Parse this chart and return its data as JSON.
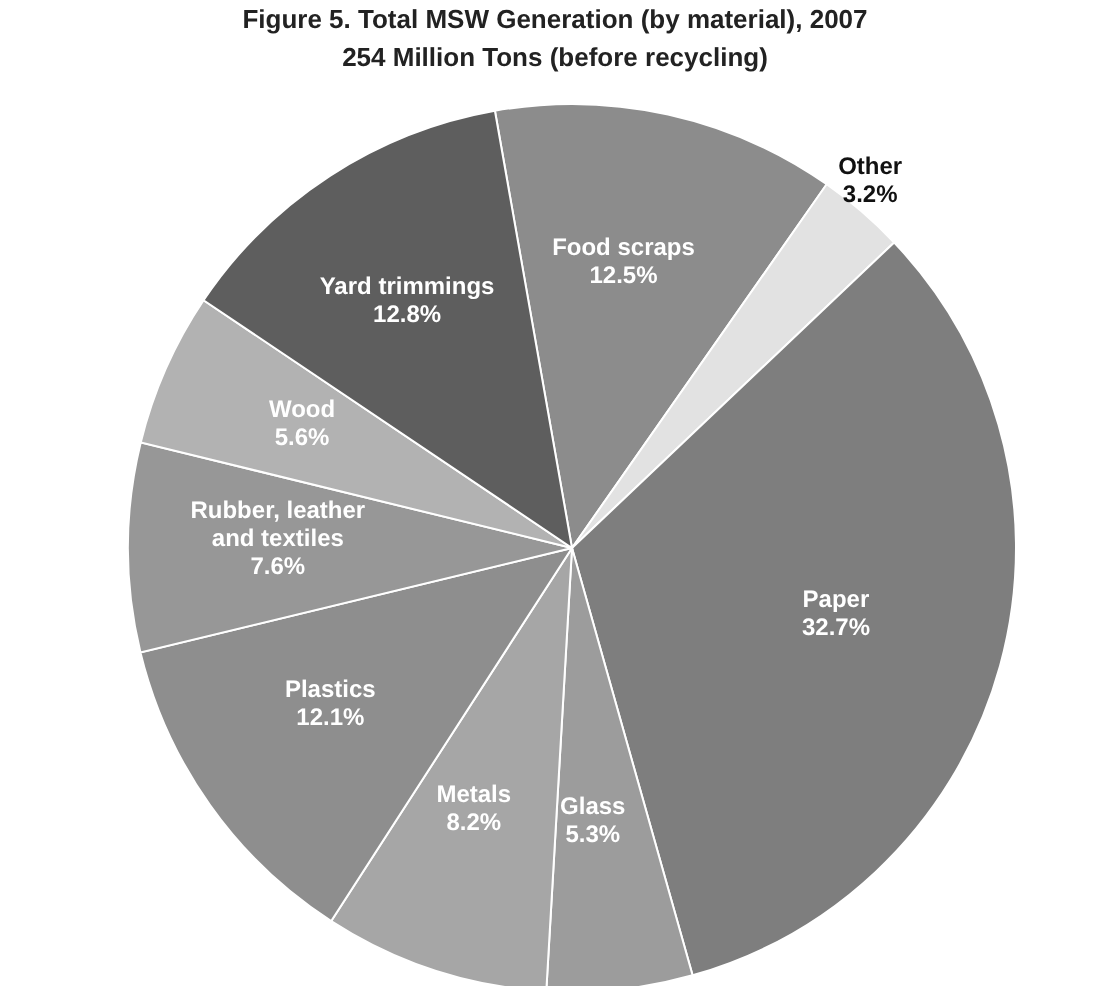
{
  "chart_data": {
    "type": "pie",
    "title": "Figure 5. Total MSW Generation (by material), 2007",
    "subtitle": "254 Million Tons (before recycling)",
    "categories": [
      "Food scraps",
      "Other",
      "Paper",
      "Glass",
      "Metals",
      "Plastics",
      "Rubber, leather and textiles",
      "Wood",
      "Yard trimmings"
    ],
    "values": [
      12.5,
      3.2,
      32.7,
      5.3,
      8.2,
      12.1,
      7.6,
      5.6,
      12.8
    ],
    "colors": [
      "#8c8c8c",
      "#e2e2e2",
      "#7e7e7e",
      "#9c9c9c",
      "#a6a6a6",
      "#8e8e8e",
      "#979797",
      "#b2b2b2",
      "#5e5e5e"
    ],
    "value_labels": [
      "12.5%",
      "3.2%",
      "32.7%",
      "5.3%",
      "8.2%",
      "12.1%",
      "7.6%",
      "5.6%",
      "12.8%"
    ]
  }
}
